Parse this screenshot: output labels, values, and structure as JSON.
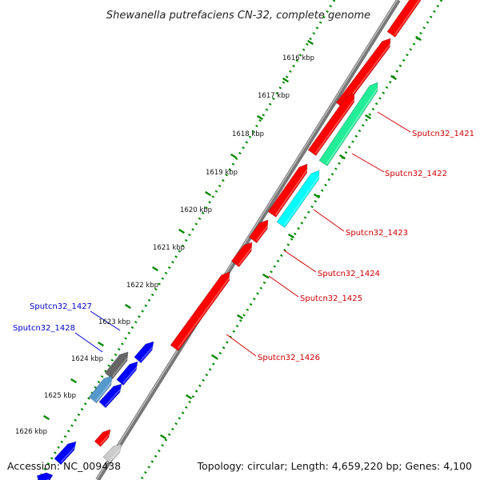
{
  "title": "Shewanella putrefaciens CN-32, complete genome",
  "footer": {
    "accession": "Accession: NC_009438",
    "topology": "Topology: circular; Length: 4,659,220 bp; Genes: 4,100"
  },
  "ruler_labels": [
    "1616 kbp",
    "1617 kbp",
    "1618 kbp",
    "1619 kbp",
    "1620 kbp",
    "1621 kbp",
    "1622 kbp",
    "1623 kbp",
    "1624 kbp",
    "1625 kbp",
    "1626 kbp"
  ],
  "gene_labels": [
    {
      "name": "Sputcn32_1421",
      "color": "#cc0000"
    },
    {
      "name": "Sputcn32_1422",
      "color": "#cc0000"
    },
    {
      "name": "Sputcn32_1423",
      "color": "#cc0000"
    },
    {
      "name": "Sputcn32_1424",
      "color": "#cc0000"
    },
    {
      "name": "Sputcn32_1425",
      "color": "#cc0000"
    },
    {
      "name": "Sputcn32_1426",
      "color": "#cc0000"
    },
    {
      "name": "Sputcn32_1427",
      "color": "#0000cc"
    },
    {
      "name": "Sputcn32_1428",
      "color": "#0000cc"
    }
  ],
  "colors": {
    "forward": "#ff0000",
    "reverse": "#0000ff",
    "teal": "#22ee99",
    "cyan": "#00ffff",
    "gray": "#666666",
    "steel": "#5599cc",
    "lightgray": "#cccccc",
    "backbone": "#888888",
    "ruler": "#008800"
  }
}
